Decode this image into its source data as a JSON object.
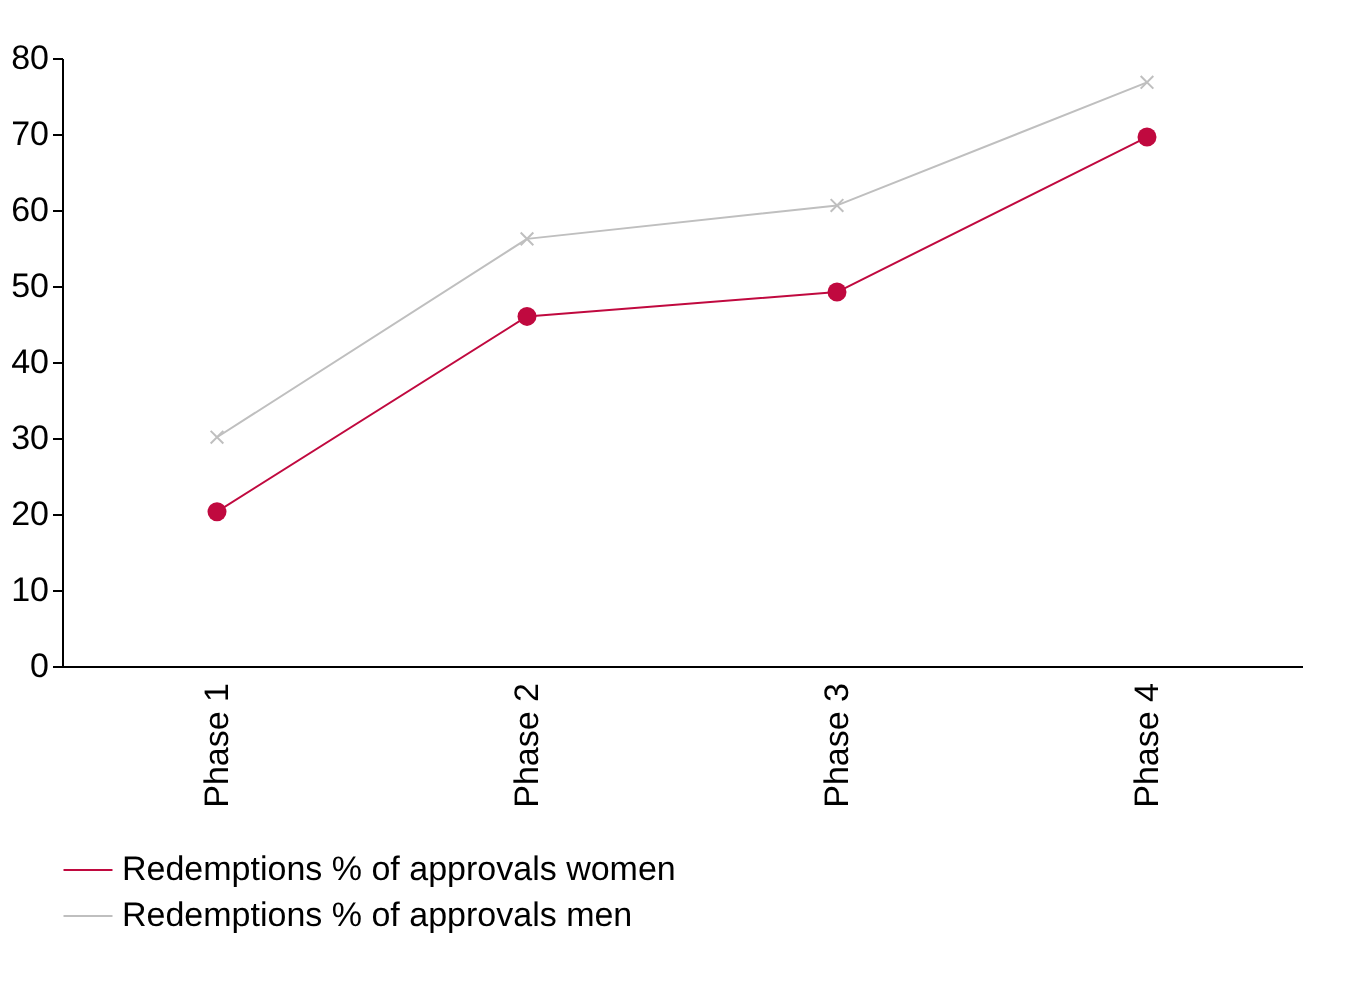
{
  "chart_data": {
    "type": "line",
    "categories": [
      "Phase 1",
      "Phase 2",
      "Phase 3",
      "Phase 4"
    ],
    "series": [
      {
        "name": "Redemptions % of approvals women",
        "color": "#c0093f",
        "marker": "circle",
        "values": [
          20.3,
          46,
          49.2,
          69.6
        ]
      },
      {
        "name": "Redemptions % of approvals men",
        "color": "#bfbfbf",
        "marker": "cross",
        "values": [
          30.1,
          56.2,
          60.6,
          76.8
        ]
      }
    ],
    "ylim": [
      0,
      80
    ],
    "yticks": [
      0,
      10,
      20,
      30,
      40,
      50,
      60,
      70,
      80
    ],
    "grid": false,
    "legend": "bottom"
  }
}
